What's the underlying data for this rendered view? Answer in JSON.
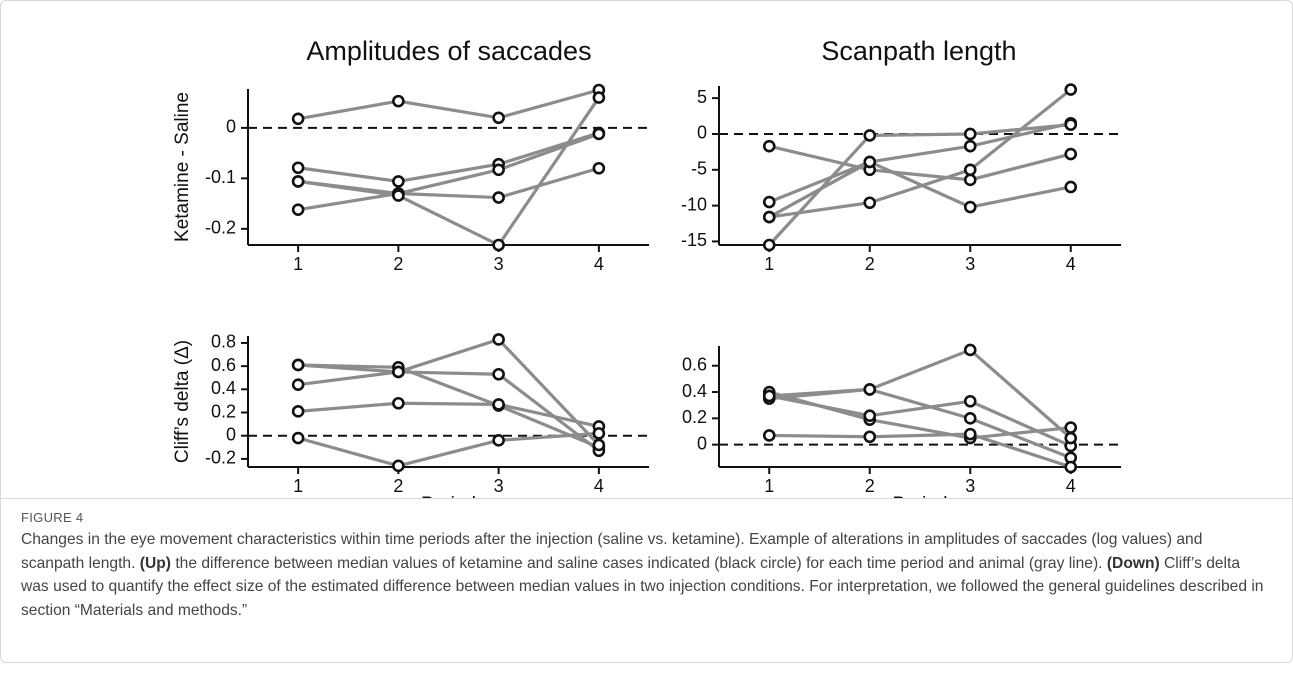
{
  "chart_data": [
    {
      "type": "line",
      "title": "Amplitudes of saccades",
      "ylabel": "Ketamine - Saline",
      "x": [
        1,
        2,
        3,
        4
      ],
      "xlim": [
        0.5,
        4.5
      ],
      "xticks": [
        1,
        2,
        3,
        4
      ],
      "ylim": [
        -0.232,
        0.077
      ],
      "yticks": [
        0,
        -0.1,
        -0.2
      ],
      "reference_line": 0,
      "line_color": "#8c8c8c",
      "marker_color": "#111111",
      "series": [
        {
          "values": [
            0.018,
            0.053,
            0.02,
            0.075
          ]
        },
        {
          "values": [
            -0.079,
            -0.106,
            -0.072,
            -0.01
          ]
        },
        {
          "values": [
            -0.106,
            -0.13,
            -0.138,
            -0.08
          ]
        },
        {
          "values": [
            -0.162,
            -0.13,
            -0.083,
            -0.012
          ]
        },
        {
          "values": [
            -0.106,
            -0.134,
            -0.232,
            0.06
          ]
        }
      ]
    },
    {
      "type": "line",
      "title": "Scanpath length",
      "x": [
        1,
        2,
        3,
        4
      ],
      "xlim": [
        0.5,
        4.5
      ],
      "xticks": [
        1,
        2,
        3,
        4
      ],
      "ylim": [
        -15.5,
        6.7
      ],
      "yticks": [
        5,
        0,
        -5,
        -10,
        -15
      ],
      "reference_line": 0,
      "line_color": "#8c8c8c",
      "marker_color": "#111111",
      "series": [
        {
          "values": [
            -1.7,
            -5,
            -6.4,
            -2.8
          ]
        },
        {
          "values": [
            -9.5,
            -3.9,
            -1.7,
            1.5
          ]
        },
        {
          "values": [
            -11.6,
            -9.6,
            -5,
            6.2
          ]
        },
        {
          "values": [
            -15.5,
            -0.2,
            0,
            1.3
          ]
        },
        {
          "values": [
            -11.6,
            -3.9,
            -10.2,
            -7.4
          ]
        }
      ]
    },
    {
      "type": "line",
      "ylabel": "Cliff’s delta (Δ)",
      "xlabel": "Period",
      "x": [
        1,
        2,
        3,
        4
      ],
      "xlim": [
        0.5,
        4.5
      ],
      "xticks": [
        1,
        2,
        3,
        4
      ],
      "ylim": [
        -0.27,
        0.86
      ],
      "yticks": [
        0.8,
        0.6,
        0.4,
        0.2,
        0,
        -0.2
      ],
      "reference_line": 0,
      "line_color": "#8c8c8c",
      "marker_color": "#111111",
      "series": [
        {
          "values": [
            0.61,
            0.59,
            0.26,
            -0.1
          ]
        },
        {
          "values": [
            0.44,
            0.55,
            0.53,
            -0.13
          ]
        },
        {
          "values": [
            0.21,
            0.28,
            0.27,
            0.08
          ]
        },
        {
          "values": [
            -0.02,
            -0.26,
            -0.04,
            0.02
          ]
        },
        {
          "values": [
            0.61,
            0.55,
            0.83,
            -0.08
          ]
        }
      ]
    },
    {
      "type": "line",
      "xlabel": "Period",
      "x": [
        1,
        2,
        3,
        4
      ],
      "xlim": [
        0.5,
        4.5
      ],
      "xticks": [
        1,
        2,
        3,
        4
      ],
      "ylim": [
        -0.17,
        0.75
      ],
      "yticks": [
        0.6,
        0.4,
        0.2,
        0
      ],
      "reference_line": 0,
      "line_color": "#8c8c8c",
      "marker_color": "#111111",
      "series": [
        {
          "values": [
            0.4,
            0.19,
            0.05,
            0.13
          ]
        },
        {
          "values": [
            0.37,
            0.22,
            0.33,
            -0.01
          ]
        },
        {
          "values": [
            0.35,
            0.42,
            0.2,
            -0.1
          ]
        },
        {
          "values": [
            0.07,
            0.06,
            0.08,
            -0.17
          ]
        },
        {
          "values": [
            0.37,
            0.42,
            0.72,
            0.05
          ]
        }
      ]
    }
  ],
  "figure_label": "FIGURE 4",
  "caption": {
    "intro": "Changes in the eye movement characteristics within time periods after the injection (saline vs. ketamine). Example of alterations in amplitudes of saccades (log values) and scanpath length.",
    "up_label": "(Up)",
    "up_text": "the difference between median values of ketamine and saline cases indicated (black circle) for each time period and animal (gray line).",
    "down_label": "(Down)",
    "down_text": "Cliff’s delta was used to quantify the effect size of the estimated difference between median values in two injection conditions. For interpretation, we followed the general guidelines described in section “Materials and methods.”"
  }
}
